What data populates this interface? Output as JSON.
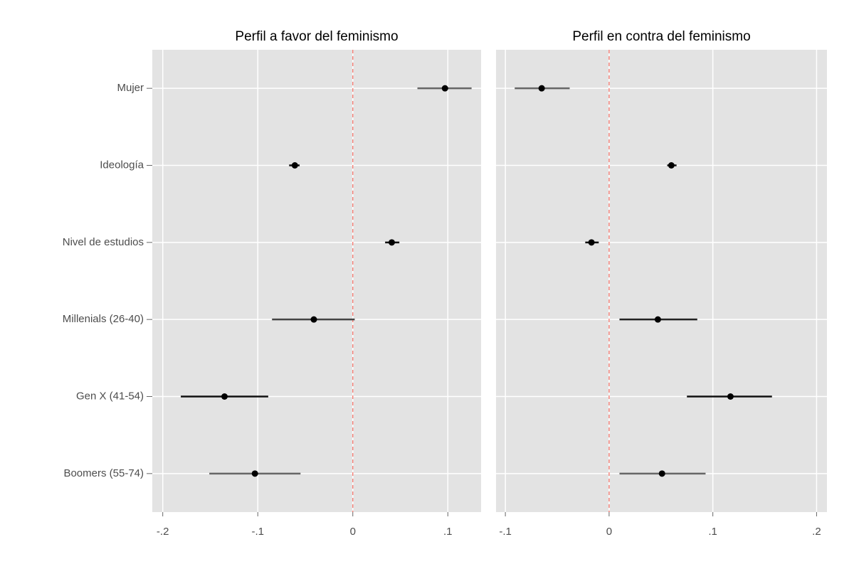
{
  "chart_data": [
    {
      "type": "coefplot",
      "title": "Perfil a favor del feminismo",
      "categories": [
        "Mujer",
        "Ideología",
        "Nivel de estudios",
        "Millenials (26-40)",
        "Gen X (41-54)",
        "Boomers (55-74)"
      ],
      "values": [
        0.097,
        -0.061,
        0.041,
        -0.041,
        -0.135,
        -0.103
      ],
      "low": [
        0.068,
        -0.067,
        0.034,
        -0.085,
        -0.181,
        -0.151
      ],
      "high": [
        0.125,
        -0.056,
        0.049,
        0.002,
        -0.089,
        -0.055
      ],
      "ci_colors": [
        "#666666",
        "#111111",
        "#111111",
        "#444444",
        "#111111",
        "#666666"
      ],
      "xlim": [
        -0.211,
        0.135
      ],
      "xticks": [
        {
          "value": -0.2,
          "label": "-.2"
        },
        {
          "value": -0.1,
          "label": "-.1"
        },
        0,
        {
          "value": 0.1,
          "label": ".1"
        }
      ],
      "ref_line": 0,
      "ref_color": "#f8766d",
      "grid": true
    },
    {
      "type": "coefplot",
      "title": "Perfil en contra del feminismo",
      "values": [
        -0.065,
        0.06,
        -0.017,
        0.047,
        0.117,
        0.051
      ],
      "low": [
        -0.091,
        0.056,
        -0.023,
        0.01,
        0.075,
        0.01
      ],
      "high": [
        -0.038,
        0.065,
        -0.01,
        0.085,
        0.157,
        0.093
      ],
      "ci_colors": [
        "#666666",
        "#111111",
        "#111111",
        "#222222",
        "#111111",
        "#666666"
      ],
      "xlim": [
        -0.109,
        0.21
      ],
      "xticks": [
        {
          "value": -0.1,
          "label": "-.1"
        },
        0,
        {
          "value": 0.1,
          "label": ".1"
        },
        {
          "value": 0.2,
          "label": ".2"
        }
      ],
      "ref_line": 0,
      "ref_color": "#f8766d",
      "grid": true
    }
  ]
}
